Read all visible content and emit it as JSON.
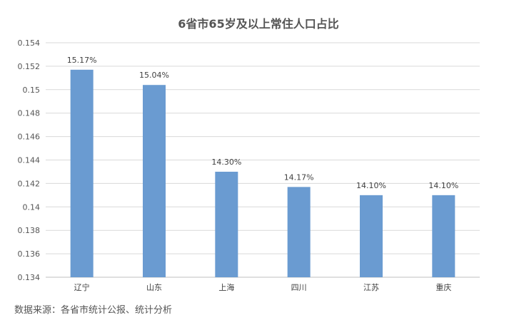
{
  "chart_data": {
    "type": "bar",
    "title": "6省市65岁及以上常住人口占比",
    "categories": [
      "辽宁",
      "山东",
      "上海",
      "四川",
      "江苏",
      "重庆"
    ],
    "values": [
      0.1517,
      0.1504,
      0.143,
      0.1417,
      0.141,
      0.141
    ],
    "data_labels": [
      "15.17%",
      "15.04%",
      "14.30%",
      "14.17%",
      "14.10%",
      "14.10%"
    ],
    "y_ticks": [
      "0.134",
      "0.136",
      "0.138",
      "0.14",
      "0.142",
      "0.144",
      "0.146",
      "0.148",
      "0.15",
      "0.152",
      "0.154"
    ],
    "ylim": [
      0.134,
      0.154
    ],
    "xlabel": "",
    "ylabel": "",
    "grid": true,
    "legend": "none",
    "bar_color": "#6a9bd1",
    "grid_color": "#d9d9d9"
  },
  "source_text": "数据来源：各省市统计公报、统计分析"
}
